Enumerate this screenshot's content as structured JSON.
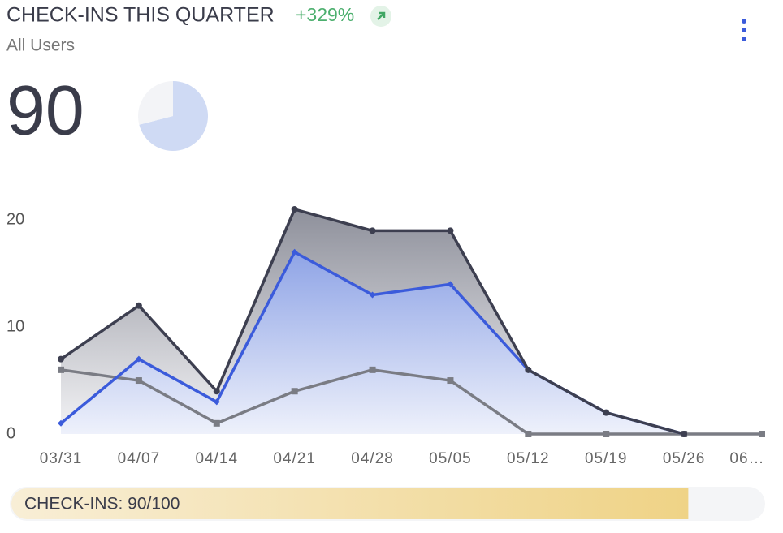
{
  "chart_data": {
    "type": "line",
    "title": "CHECK-INS THIS QUARTER",
    "change": "+329%",
    "subtitle": "All Users",
    "total": "90",
    "pie": {
      "values": [
        71,
        29
      ],
      "colors": [
        "#cfdaf4",
        "#f3f4f7"
      ]
    },
    "categories": [
      "03/31",
      "04/07",
      "04/14",
      "04/21",
      "04/28",
      "05/05",
      "05/12",
      "05/19",
      "05/26",
      "06…"
    ],
    "series": [
      {
        "color": "#3d3f50",
        "fill": "#8e909b",
        "marker": "circle",
        "values": [
          7,
          12,
          4,
          21,
          19,
          19,
          6,
          2,
          0,
          null
        ]
      },
      {
        "color": "#3b5bdb",
        "fill": "#8fa4e6",
        "marker": "diamond",
        "values": [
          1,
          7,
          3,
          17,
          13,
          14,
          6,
          2,
          0,
          null
        ]
      },
      {
        "color": "#7a7c84",
        "marker": "square",
        "values": [
          6,
          5,
          1,
          4,
          6,
          5,
          0,
          0,
          0,
          0
        ]
      }
    ],
    "ylim": [
      0,
      21
    ],
    "yticks": [
      0,
      10,
      20
    ],
    "progress": {
      "label": "CHECK-INS: 90/100",
      "value": 90,
      "max": 100
    }
  }
}
